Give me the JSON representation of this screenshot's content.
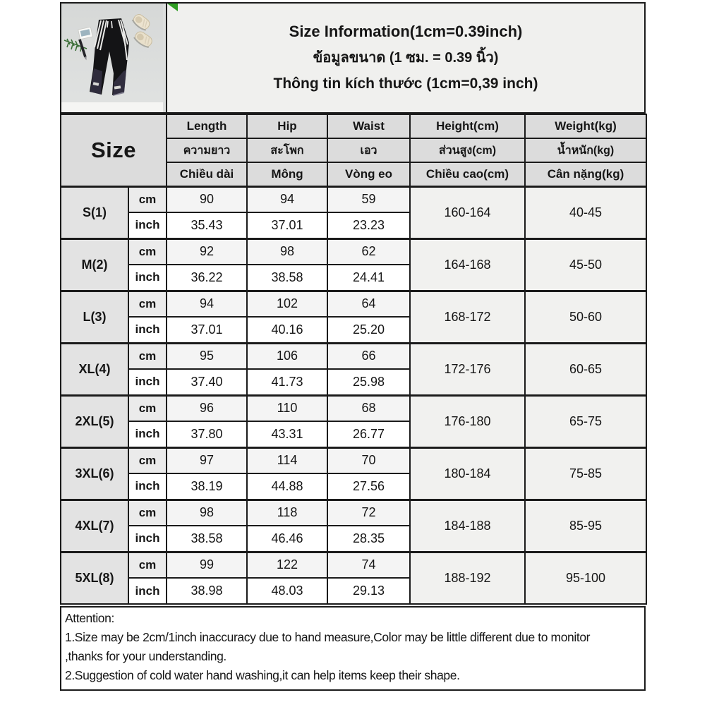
{
  "header": {
    "title_lines": {
      "en": "Size Information(1cm=0.39inch)",
      "th": "ข้อมูลขนาด (1 ซม. = 0.39 นิ้ว)",
      "vi": "Thông tin kích thước (1cm=0,39 inch)"
    }
  },
  "photo": {
    "description": "black jogger pants with side stripes, beige canvas shoes, fern leaf, card and pen on gray background"
  },
  "table": {
    "size_header": "Size",
    "unit_labels": {
      "cm": "cm",
      "inch": "inch"
    },
    "columns": [
      {
        "en": "Length",
        "th": "ความยาว",
        "vi": "Chiều dài"
      },
      {
        "en": "Hip",
        "th": "สะโพก",
        "vi": "Mông"
      },
      {
        "en": "Waist",
        "th": "เอว",
        "vi": "Vòng eo"
      },
      {
        "en": "Height(cm)",
        "th": "ส่วนสูง(cm)",
        "vi": "Chiều cao(cm)"
      },
      {
        "en": "Weight(kg)",
        "th": "น้ำหนัก(kg)",
        "vi": "Cân nặng(kg)"
      }
    ],
    "sizes": [
      {
        "label": "S(1)",
        "cm": [
          "90",
          "94",
          "59"
        ],
        "inch": [
          "35.43",
          "37.01",
          "23.23"
        ],
        "height": "160-164",
        "weight": "40-45"
      },
      {
        "label": "M(2)",
        "cm": [
          "92",
          "98",
          "62"
        ],
        "inch": [
          "36.22",
          "38.58",
          "24.41"
        ],
        "height": "164-168",
        "weight": "45-50"
      },
      {
        "label": "L(3)",
        "cm": [
          "94",
          "102",
          "64"
        ],
        "inch": [
          "37.01",
          "40.16",
          "25.20"
        ],
        "height": "168-172",
        "weight": "50-60"
      },
      {
        "label": "XL(4)",
        "cm": [
          "95",
          "106",
          "66"
        ],
        "inch": [
          "37.40",
          "41.73",
          "25.98"
        ],
        "height": "172-176",
        "weight": "60-65"
      },
      {
        "label": "2XL(5)",
        "cm": [
          "96",
          "110",
          "68"
        ],
        "inch": [
          "37.80",
          "43.31",
          "26.77"
        ],
        "height": "176-180",
        "weight": "65-75"
      },
      {
        "label": "3XL(6)",
        "cm": [
          "97",
          "114",
          "70"
        ],
        "inch": [
          "38.19",
          "44.88",
          "27.56"
        ],
        "height": "180-184",
        "weight": "75-85"
      },
      {
        "label": "4XL(7)",
        "cm": [
          "98",
          "118",
          "72"
        ],
        "inch": [
          "38.58",
          "46.46",
          "28.35"
        ],
        "height": "184-188",
        "weight": "85-95"
      },
      {
        "label": "5XL(8)",
        "cm": [
          "99",
          "122",
          "74"
        ],
        "inch": [
          "38.98",
          "48.03",
          "29.13"
        ],
        "height": "188-192",
        "weight": "95-100"
      }
    ]
  },
  "attention": {
    "lines": [
      "Attention:",
      "1.Size may be 2cm/1inch inaccuracy due to hand measure,Color may be little different due to monitor",
      ",thanks for your understanding.",
      "2.Suggestion of cold water hand washing,it can help items keep their shape."
    ]
  },
  "colors": {
    "border": "#1b1b1b",
    "header_cell_gray": "#dcdcdc",
    "size_label_gray": "#e3e3e3",
    "cm_row_gray": "#f4f4f4",
    "range_cell_gray": "#f1f1ef",
    "panel_gray": "#f0f0ee",
    "corner_marker_green": "#2f9e23"
  }
}
